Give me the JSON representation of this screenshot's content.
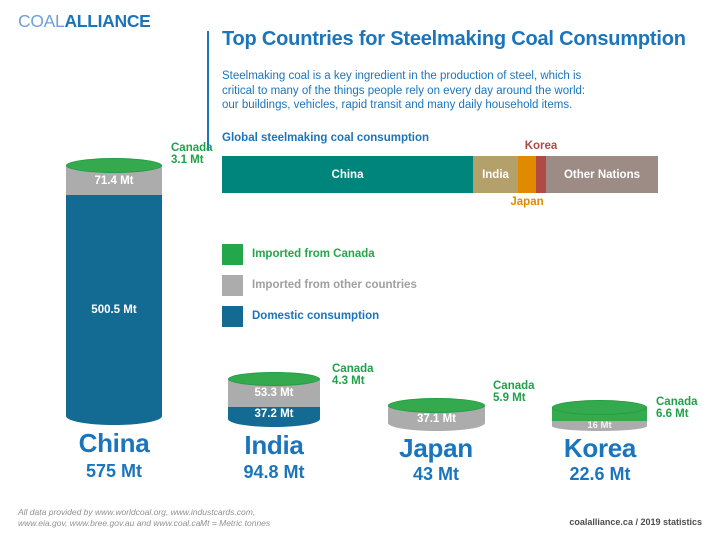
{
  "logo": {
    "part1": "COAL",
    "part2": "ALLIANCE"
  },
  "header": {
    "title": "Top Countries for Steelmaking Coal Consumption",
    "subtitle_lines": [
      "Steelmaking coal is a key ingredient in the production of steel, which is",
      "critical to many of the things people rely on every day around the world:",
      "our buildings, vehicles, rapid transit and many daily household items."
    ]
  },
  "colors": {
    "brand_blue": "#1B75BC",
    "logo_light_blue": "#6FA0D8",
    "teal_china": "#00857D",
    "tan_india": "#B3A06B",
    "orange_japan": "#E18A00",
    "red_korea": "#AF4A45",
    "taupe_other": "#9C8C85",
    "green_canada": "#22A74B",
    "gray_imports": "#ACACAC",
    "blue_domestic": "#136B94"
  },
  "chart_data": [
    {
      "type": "bar",
      "title": "Global steelmaking coal consumption",
      "orientation": "horizontal",
      "stacked": true,
      "unit": "Mt",
      "segments": [
        {
          "label": "China",
          "value_mt": 575,
          "color": "#00857D",
          "label_position": "inside"
        },
        {
          "label": "India",
          "value_mt": 94.8,
          "color": "#B3A06B",
          "label_position": "inside"
        },
        {
          "label": "Japan",
          "value_mt": 43,
          "color": "#E18A00",
          "label_position": "below"
        },
        {
          "label": "Korea",
          "value_mt": 22.6,
          "color": "#AF4A45",
          "label_position": "above"
        },
        {
          "label": "Other Nations",
          "value_mt": null,
          "color": "#9C8C85",
          "label_position": "inside"
        }
      ]
    },
    {
      "type": "bar",
      "subtype": "stacked-cylinder-columns",
      "unit": "Mt",
      "series_legend": [
        "Imported from Canada",
        "Imported from other countries",
        "Domestic consumption"
      ],
      "categories": [
        "China",
        "India",
        "Japan",
        "Korea"
      ],
      "series": [
        {
          "name": "Imported from Canada",
          "color": "#22A74B",
          "values": [
            3.1,
            4.3,
            5.9,
            6.6
          ]
        },
        {
          "name": "Imported from other countries",
          "color": "#ACACAC",
          "values": [
            71.4,
            53.3,
            37.1,
            16
          ]
        },
        {
          "name": "Domestic consumption",
          "color": "#136B94",
          "values": [
            500.5,
            37.2,
            null,
            null
          ]
        }
      ],
      "totals_mt": [
        575,
        94.8,
        43,
        22.6
      ]
    }
  ],
  "legend": {
    "items": [
      {
        "label": "Imported from Canada",
        "color": "#22A74B"
      },
      {
        "label": "Imported from other countries",
        "color": "#ACACAC"
      },
      {
        "label": "Domestic consumption",
        "color": "#136B94"
      }
    ]
  },
  "countries": [
    {
      "name": "China",
      "total": "575 Mt",
      "canada_title": "Canada",
      "canada_value": "3.1 Mt",
      "other_label": "71.4 Mt",
      "domestic_label": "500.5 Mt"
    },
    {
      "name": "India",
      "total": "94.8 Mt",
      "canada_title": "Canada",
      "canada_value": "4.3 Mt",
      "other_label": "53.3 Mt",
      "domestic_label": "37.2 Mt"
    },
    {
      "name": "Japan",
      "total": "43 Mt",
      "canada_title": "Canada",
      "canada_value": "5.9 Mt",
      "other_label": "37.1 Mt"
    },
    {
      "name": "Korea",
      "total": "22.6 Mt",
      "canada_title": "Canada",
      "canada_value": "6.6 Mt",
      "other_label": "16 Mt"
    }
  ],
  "footer": {
    "sources_line1": "All data provided by www.worldcoal.org, www.industcards.com,",
    "sources_line2": "www.eia.gov, www.bree.gov.au and www.coal.ca",
    "unit_note": "Mt = Metric tonnes",
    "credit": "coalalliance.ca / 2019 statistics"
  }
}
